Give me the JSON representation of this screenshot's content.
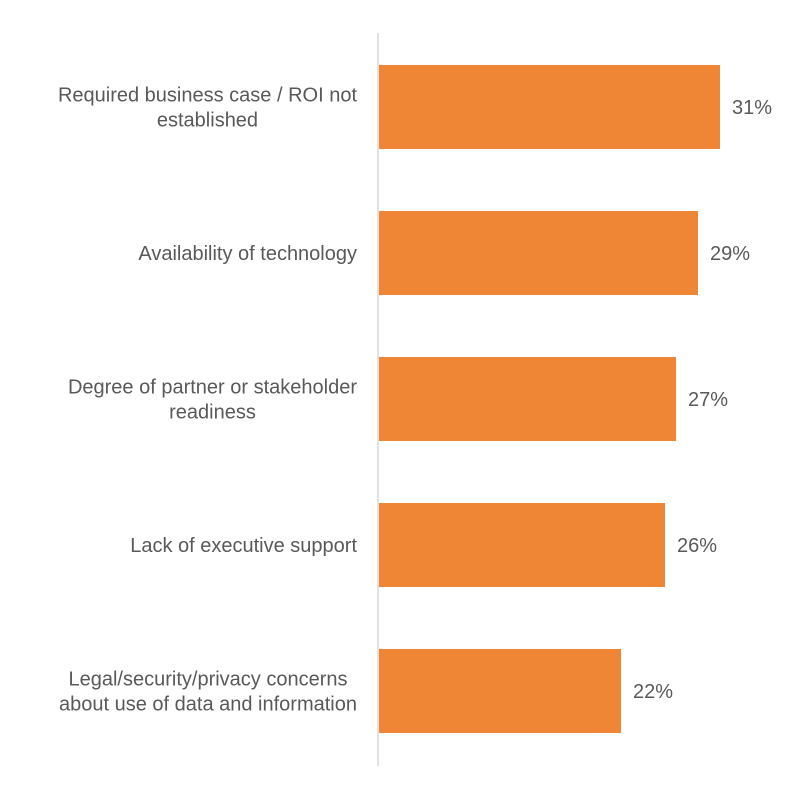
{
  "chart_data": {
    "type": "bar",
    "orientation": "horizontal",
    "categories": [
      [
        "Required business case / ROI not",
        "established"
      ],
      [
        "Availability of technology"
      ],
      [
        "Degree of partner or stakeholder",
        "readiness"
      ],
      [
        "Lack of executive support"
      ],
      [
        "Legal/security/privacy concerns",
        "about use of data and information"
      ]
    ],
    "values": [
      31,
      29,
      27,
      26,
      22
    ],
    "value_labels": [
      "31%",
      "29%",
      "27%",
      "26%",
      "22%"
    ],
    "unit": "%",
    "xlim": [
      0,
      35
    ],
    "bar_color": "#ef8636",
    "axis_color": "#d9d9d9",
    "text_color": "#595959",
    "grid": false,
    "legend": "none"
  }
}
